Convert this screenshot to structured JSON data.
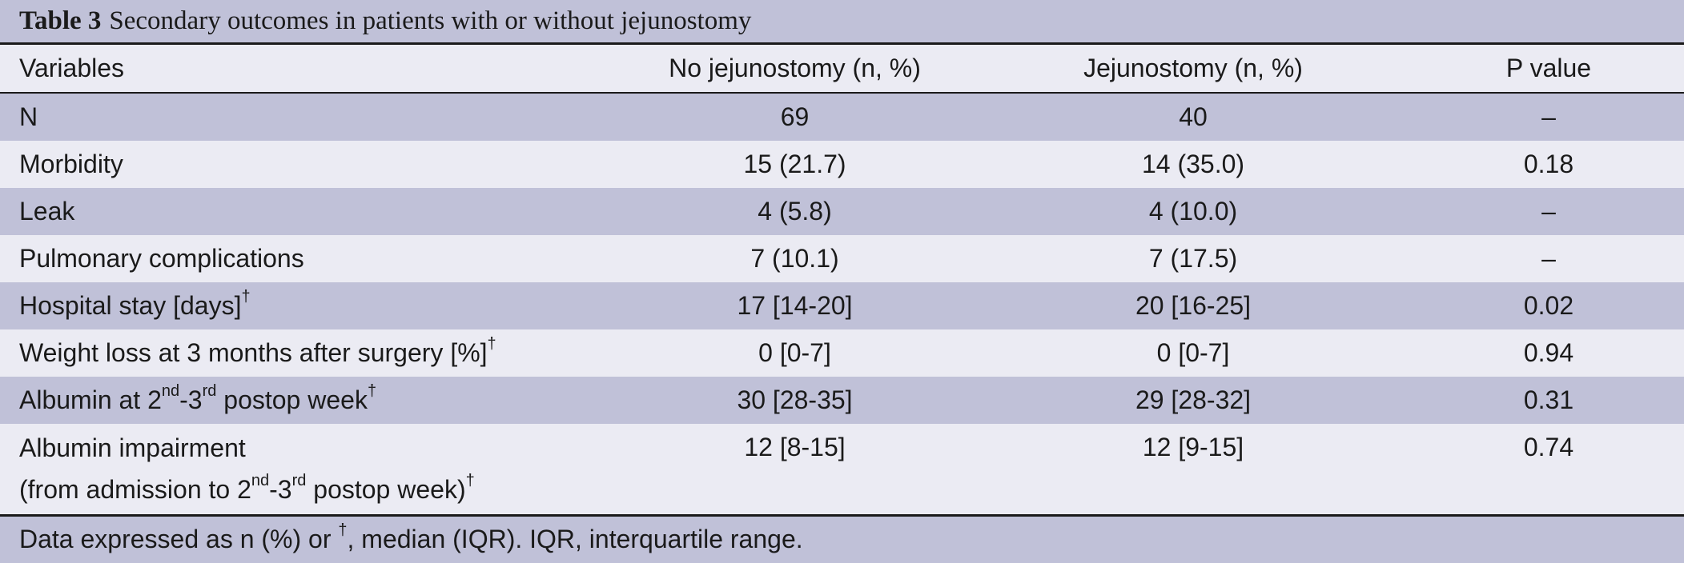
{
  "caption": {
    "label": "Table 3",
    "title": "Secondary outcomes in patients with or without jejunostomy"
  },
  "columns": [
    "Variables",
    "No jejunostomy (n, %)",
    "Jejunostomy (n, %)",
    "P value"
  ],
  "rows": [
    {
      "variable": "N",
      "no_jej": "69",
      "jej": "40",
      "p": "–"
    },
    {
      "variable": "Morbidity",
      "no_jej": "15 (21.7)",
      "jej": "14 (35.0)",
      "p": "0.18"
    },
    {
      "variable": "Leak",
      "no_jej": "4 (5.8)",
      "jej": "4 (10.0)",
      "p": "–"
    },
    {
      "variable": "Pulmonary complications",
      "no_jej": "7 (10.1)",
      "jej": "7 (17.5)",
      "p": "–"
    },
    {
      "variable": "Hospital stay [days]",
      "dagger": "†",
      "no_jej": "17 [14-20]",
      "jej": "20 [16-25]",
      "p": "0.02"
    },
    {
      "variable": "Weight loss at 3 months after surgery [%]",
      "dagger": "†",
      "no_jej": "0 [0-7]",
      "jej": "0 [0-7]",
      "p": "0.94"
    },
    {
      "variable_pre": "Albumin at 2",
      "sup1": "nd",
      "variable_mid": "-3",
      "sup2": "rd",
      "variable_post": " postop week",
      "dagger": "†",
      "no_jej": "30 [28-35]",
      "jej": "29 [28-32]",
      "p": "0.31"
    },
    {
      "line1": "Albumin impairment",
      "line2_pre": "(from admission to 2",
      "sup1": "nd",
      "line2_mid": "-3",
      "sup2": "rd",
      "line2_post": " postop week)",
      "dagger": "†",
      "no_jej": "12 [8-15]",
      "jej": "12 [9-15]",
      "p": "0.74"
    }
  ],
  "footer": {
    "pre": "Data expressed as n (%) or ",
    "dagger": "†",
    "post": ", median (IQR). IQR, interquartile range."
  }
}
